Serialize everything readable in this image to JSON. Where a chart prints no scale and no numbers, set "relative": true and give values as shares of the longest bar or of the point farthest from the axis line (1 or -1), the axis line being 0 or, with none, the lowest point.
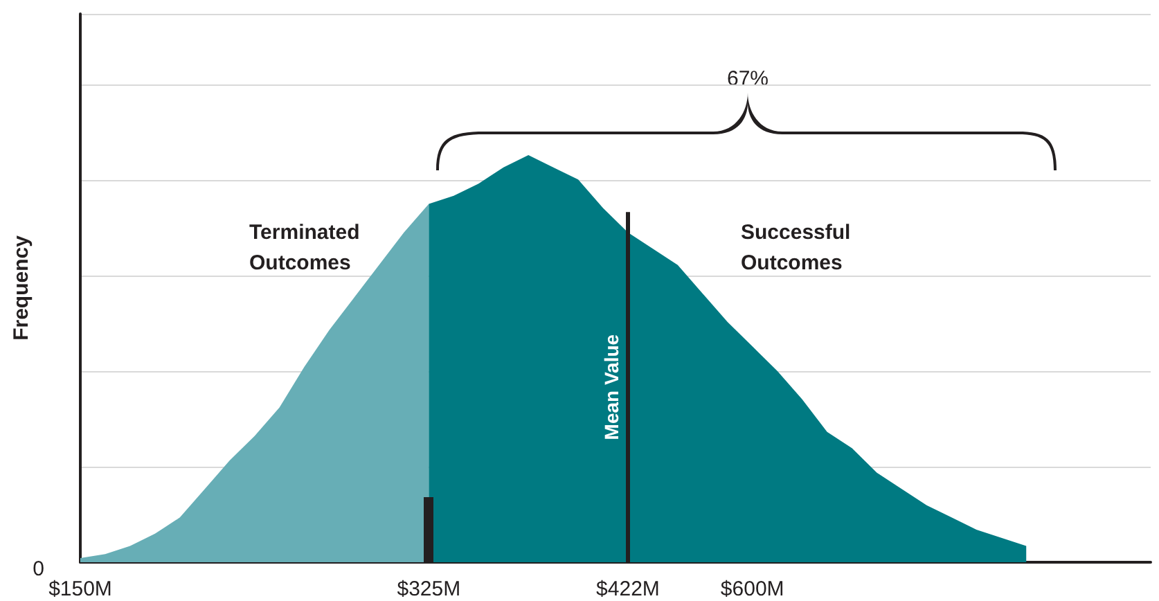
{
  "chart_data": {
    "type": "area",
    "relative": true,
    "ylabel": "Frequency",
    "grid": "y",
    "categories": [
      "$150M",
      null,
      null,
      null,
      null,
      null,
      null,
      null,
      null,
      null,
      null,
      null,
      null,
      null,
      "$325M",
      null,
      null,
      null,
      null,
      null,
      null,
      null,
      "$422M",
      null,
      null,
      null,
      null,
      "$600M",
      null,
      null,
      null,
      null,
      null,
      null,
      null,
      null,
      null,
      null,
      null,
      null,
      null,
      null,
      null,
      null
    ],
    "series": [
      {
        "color": "#67aeb6",
        "values": [
          0.01,
          0.02,
          0.04,
          0.07,
          0.11,
          0.18,
          0.25,
          0.31,
          0.38,
          0.48,
          0.57,
          0.65,
          0.73,
          0.81,
          0.88,
          null,
          null,
          null,
          null,
          null,
          null,
          null,
          null,
          null,
          null,
          null,
          null,
          null,
          null,
          null,
          null,
          null,
          null,
          null,
          null,
          null,
          null,
          null,
          null,
          null,
          null,
          null,
          null,
          null
        ]
      },
      {
        "color": "#007a82",
        "values": [
          null,
          null,
          null,
          null,
          null,
          null,
          null,
          null,
          null,
          null,
          null,
          null,
          null,
          null,
          0.88,
          0.9,
          0.93,
          0.97,
          1,
          0.97,
          0.94,
          0.87,
          0.81,
          0.77,
          0.73,
          0.66,
          0.59,
          0.53,
          0.47,
          0.4,
          0.32,
          0.28,
          0.22,
          0.18,
          0.14,
          0.11,
          0.08,
          0.06,
          0.04,
          null,
          null,
          null,
          null,
          null
        ]
      }
    ],
    "ref_lines": [
      {
        "axis": "x",
        "value": "$325M",
        "label": null,
        "color": "#231f20"
      },
      {
        "axis": "x",
        "value": "$422M",
        "label": "Mean Value",
        "color": "#231f20"
      }
    ],
    "annotations": [
      "Terminated Outcomes",
      "Successful Outcomes",
      "67%",
      "0"
    ]
  }
}
